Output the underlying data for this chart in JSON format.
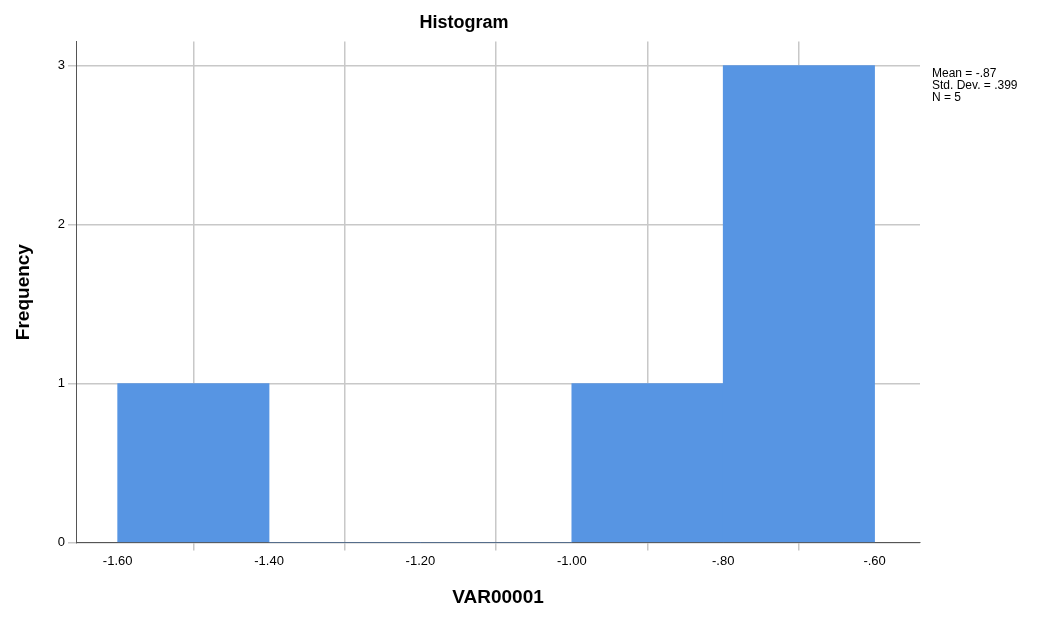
{
  "chart_data": {
    "type": "histogram",
    "title": "Histogram",
    "xlabel": "VAR00001",
    "ylabel": "Frequency",
    "bins": [
      -1.6,
      -1.4,
      -1.2,
      -1.0,
      -0.8,
      -0.6
    ],
    "values": [
      1,
      0,
      0,
      1,
      3
    ],
    "color": "#5795e3",
    "xlim": [
      -1.655,
      -0.54
    ],
    "xticks": [
      {
        "value": -1.6,
        "label": "-1.60"
      },
      {
        "value": -1.4,
        "label": "-1.40"
      },
      {
        "value": -1.2,
        "label": "-1.20"
      },
      {
        "value": -1.0,
        "label": "-1.00"
      },
      {
        "value": -0.8,
        "label": "-.80"
      },
      {
        "value": -0.6,
        "label": "-.60"
      }
    ],
    "ylim": [
      0,
      3.15
    ],
    "yticks": [
      0,
      1,
      2,
      3
    ],
    "grid": true,
    "annotations": [
      "Mean = -.87",
      "Std. Dev. = .399",
      "N = 5"
    ]
  }
}
